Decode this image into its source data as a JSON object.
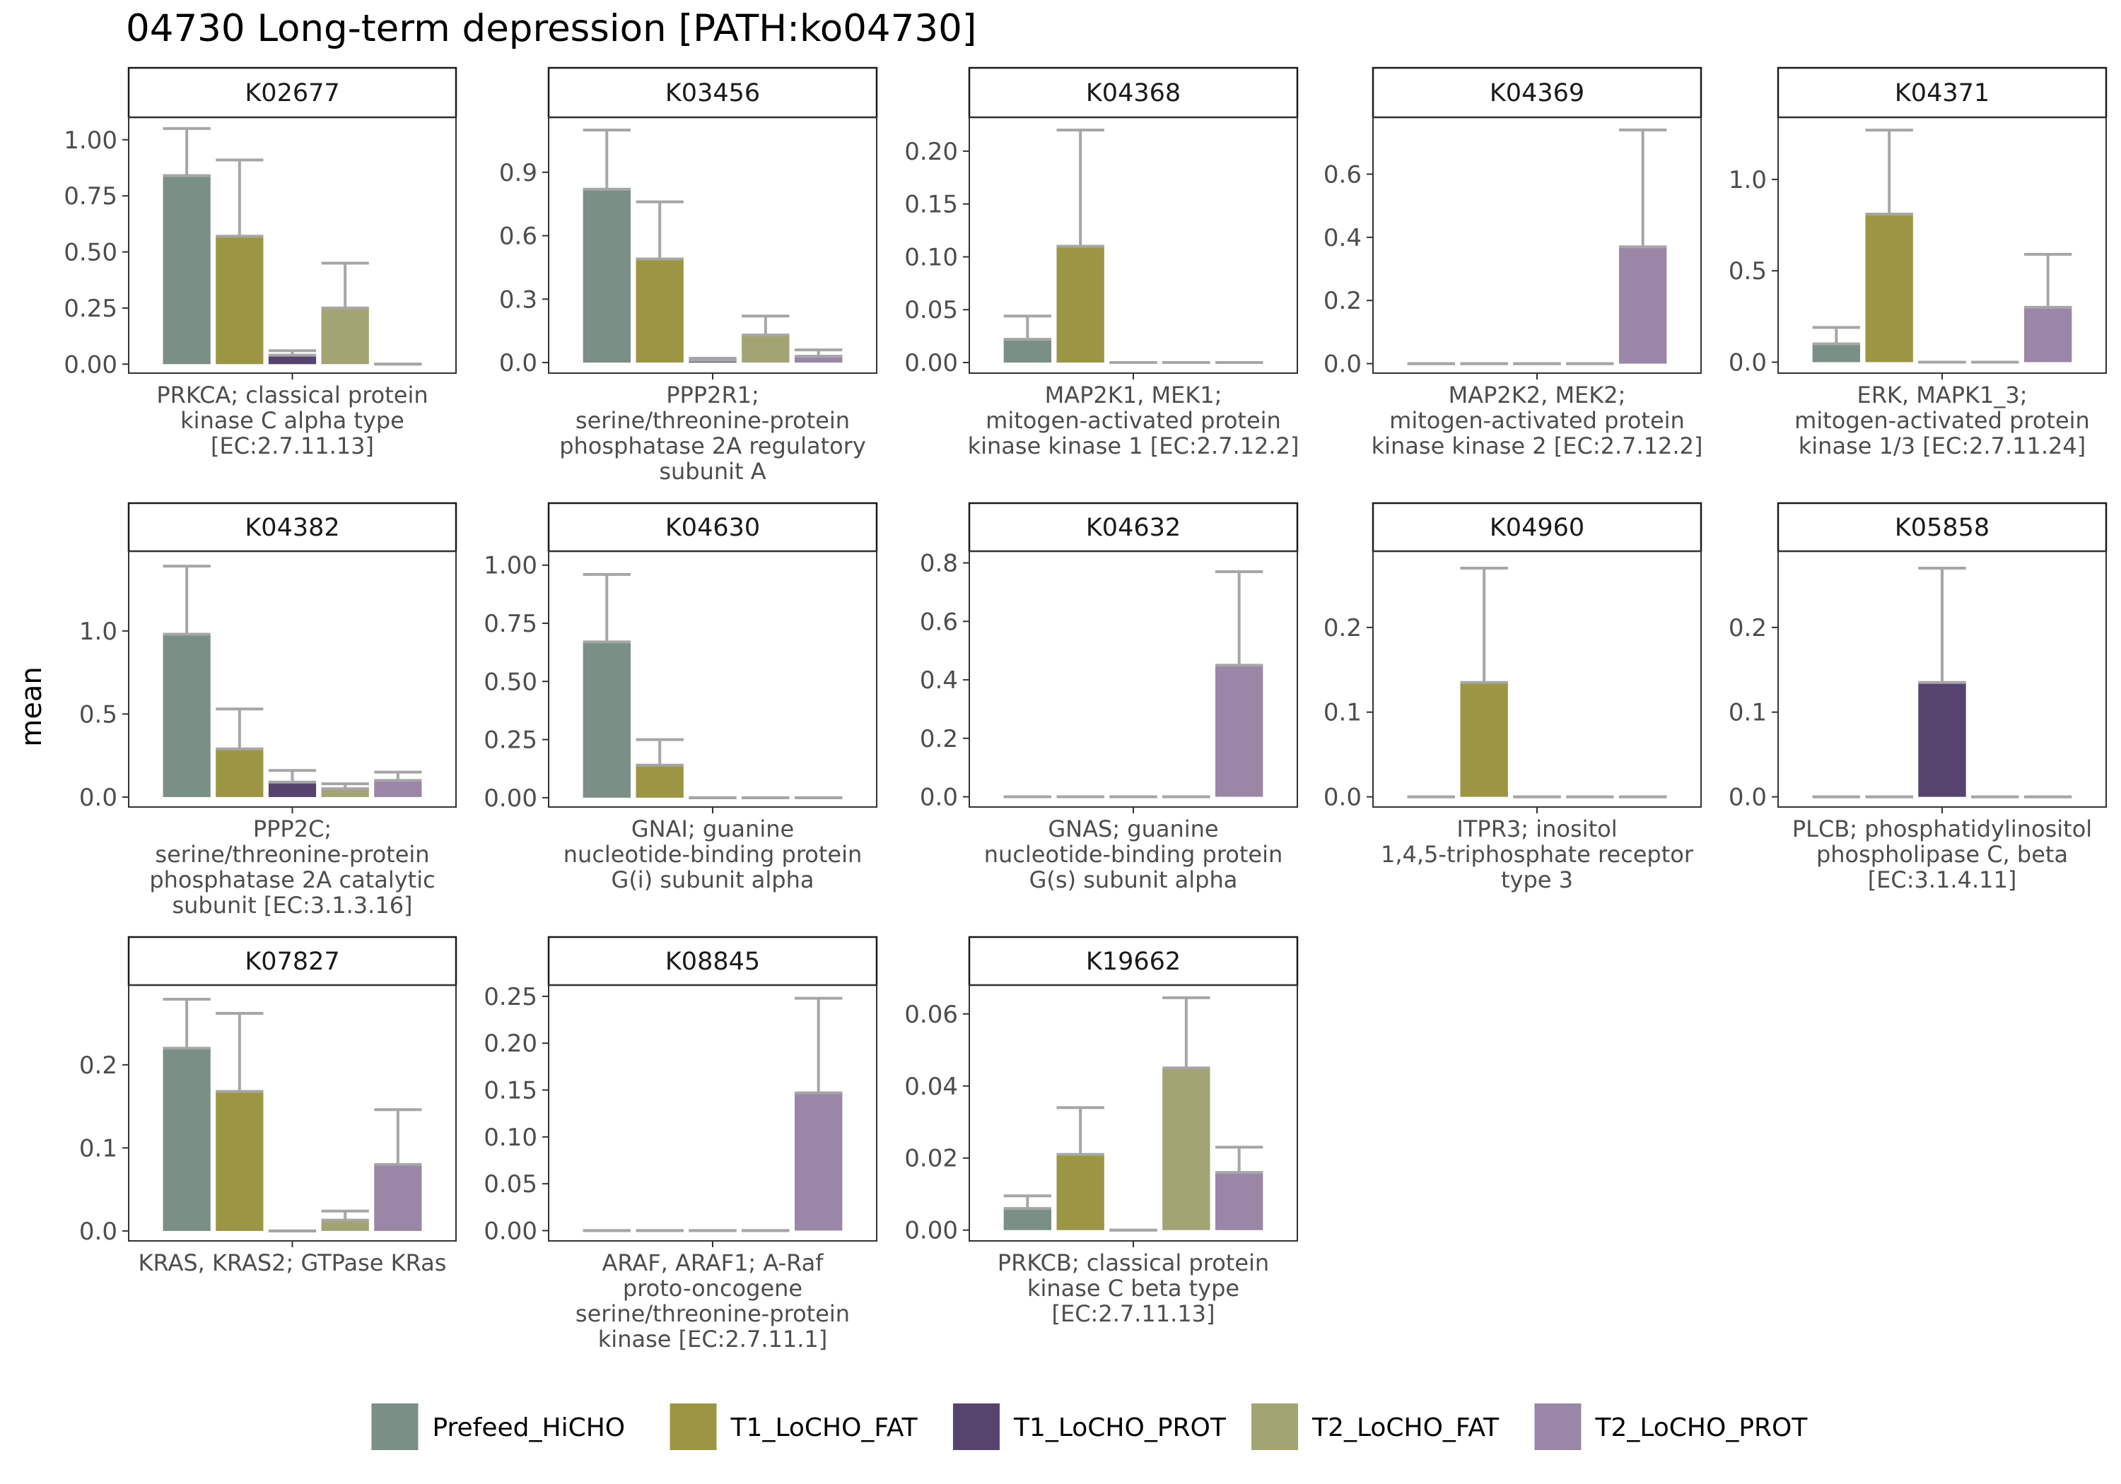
{
  "title": "04730 Long-term depression [PATH:ko04730]",
  "y_axis_title": "mean",
  "groups": [
    "Prefeed_HiCHO",
    "T1_LoCHO_FAT",
    "T1_LoCHO_PROT",
    "T2_LoCHO_FAT",
    "T2_LoCHO_PROT"
  ],
  "colors": {
    "Prefeed_HiCHO": "#7a8f86",
    "T1_LoCHO_FAT": "#9c9644",
    "T1_LoCHO_PROT": "#56446f",
    "T2_LoCHO_FAT": "#a3a473",
    "T2_LoCHO_PROT": "#9a86a6",
    "error_bar": "#a6a6a6"
  },
  "chart_data": {
    "type": "bar",
    "facet_layout": {
      "columns": 5,
      "rows": 3
    },
    "legend_position": "bottom",
    "grid": false,
    "panels": [
      {
        "id": "K02677",
        "xlabel": [
          "PRKCA; classical protein",
          "kinase C alpha type",
          "[EC:2.7.11.13]"
        ],
        "ylim": [
          -0.04,
          1.1
        ],
        "yticks": [
          0,
          0.25,
          0.5,
          0.75,
          1
        ],
        "ytick_labels": [
          "0.00",
          "0.25",
          "0.50",
          "0.75",
          "1.00"
        ],
        "means": [
          0.84,
          0.57,
          0.04,
          0.25,
          0.0
        ],
        "upper": [
          1.05,
          0.91,
          0.06,
          0.45,
          0.0
        ]
      },
      {
        "id": "K03456",
        "xlabel": [
          "PPP2R1;",
          "serine/threonine-protein",
          "phosphatase 2A regulatory",
          "subunit A"
        ],
        "ylim": [
          -0.05,
          1.16
        ],
        "yticks": [
          0,
          0.3,
          0.6,
          0.9
        ],
        "ytick_labels": [
          "0.0",
          "0.3",
          "0.6",
          "0.9"
        ],
        "means": [
          0.82,
          0.49,
          0.01,
          0.13,
          0.03
        ],
        "upper": [
          1.1,
          0.76,
          0.02,
          0.22,
          0.06
        ]
      },
      {
        "id": "K04368",
        "xlabel": [
          "MAP2K1, MEK1;",
          "mitogen-activated protein",
          "kinase kinase 1 [EC:2.7.12.2]"
        ],
        "ylim": [
          -0.01,
          0.232
        ],
        "yticks": [
          0,
          0.05,
          0.1,
          0.15,
          0.2
        ],
        "ytick_labels": [
          "0.00",
          "0.05",
          "0.10",
          "0.15",
          "0.20"
        ],
        "means": [
          0.022,
          0.11,
          0.0,
          0.0,
          0.0
        ],
        "upper": [
          0.044,
          0.22,
          0.0,
          0.0,
          0.0
        ]
      },
      {
        "id": "K04369",
        "xlabel": [
          "MAP2K2, MEK2;",
          "mitogen-activated protein",
          "kinase kinase 2 [EC:2.7.12.2]"
        ],
        "ylim": [
          -0.03,
          0.78
        ],
        "yticks": [
          0,
          0.2,
          0.4,
          0.6
        ],
        "ytick_labels": [
          "0.0",
          "0.2",
          "0.4",
          "0.6"
        ],
        "means": [
          0.0,
          0.0,
          0.0,
          0.0,
          0.37
        ],
        "upper": [
          0.0,
          0.0,
          0.0,
          0.0,
          0.74
        ]
      },
      {
        "id": "K04371",
        "xlabel": [
          "ERK, MAPK1_3;",
          "mitogen-activated protein",
          "kinase 1/3 [EC:2.7.11.24]"
        ],
        "ylim": [
          -0.06,
          1.34
        ],
        "yticks": [
          0,
          0.5,
          1.0
        ],
        "ytick_labels": [
          "0.0",
          "0.5",
          "1.0"
        ],
        "means": [
          0.1,
          0.81,
          0.0,
          0.0,
          0.3
        ],
        "upper": [
          0.19,
          1.27,
          0.0,
          0.0,
          0.59
        ]
      },
      {
        "id": "K04382",
        "xlabel": [
          "PPP2C;",
          "serine/threonine-protein",
          "phosphatase 2A catalytic",
          "subunit [EC:3.1.3.16]"
        ],
        "ylim": [
          -0.06,
          1.48
        ],
        "yticks": [
          0,
          0.5,
          1.0
        ],
        "ytick_labels": [
          "0.0",
          "0.5",
          "1.0"
        ],
        "means": [
          0.98,
          0.29,
          0.09,
          0.05,
          0.1
        ],
        "upper": [
          1.39,
          0.53,
          0.16,
          0.08,
          0.15
        ]
      },
      {
        "id": "K04630",
        "xlabel": [
          "GNAI; guanine",
          "nucleotide-binding protein",
          "G(i) subunit alpha"
        ],
        "ylim": [
          -0.04,
          1.06
        ],
        "yticks": [
          0,
          0.25,
          0.5,
          0.75,
          1
        ],
        "ytick_labels": [
          "0.00",
          "0.25",
          "0.50",
          "0.75",
          "1.00"
        ],
        "means": [
          0.67,
          0.14,
          0.0,
          0.0,
          0.0
        ],
        "upper": [
          0.96,
          0.25,
          0.0,
          0.0,
          0.0
        ]
      },
      {
        "id": "K04632",
        "xlabel": [
          "GNAS; guanine",
          "nucleotide-binding protein",
          "G(s) subunit alpha"
        ],
        "ylim": [
          -0.035,
          0.84
        ],
        "yticks": [
          0,
          0.2,
          0.4,
          0.6,
          0.8
        ],
        "ytick_labels": [
          "0.0",
          "0.2",
          "0.4",
          "0.6",
          "0.8"
        ],
        "means": [
          0.0,
          0.0,
          0.0,
          0.0,
          0.45
        ],
        "upper": [
          0.0,
          0.0,
          0.0,
          0.0,
          0.77
        ]
      },
      {
        "id": "K04960",
        "xlabel": [
          "ITPR3; inositol",
          "1,4,5-triphosphate receptor",
          "type 3"
        ],
        "ylim": [
          -0.012,
          0.29
        ],
        "yticks": [
          0,
          0.1,
          0.2
        ],
        "ytick_labels": [
          "0.0",
          "0.1",
          "0.2"
        ],
        "means": [
          0.0,
          0.135,
          0.0,
          0.0,
          0.0
        ],
        "upper": [
          0.0,
          0.27,
          0.0,
          0.0,
          0.0
        ]
      },
      {
        "id": "K05858",
        "xlabel": [
          "PLCB; phosphatidylinositol",
          "phospholipase C, beta",
          "[EC:3.1.4.11]"
        ],
        "ylim": [
          -0.012,
          0.29
        ],
        "yticks": [
          0,
          0.1,
          0.2
        ],
        "ytick_labels": [
          "0.0",
          "0.1",
          "0.2"
        ],
        "means": [
          0.0,
          0.0,
          0.135,
          0.0,
          0.0
        ],
        "upper": [
          0.0,
          0.0,
          0.27,
          0.0,
          0.0
        ]
      },
      {
        "id": "K07827",
        "xlabel": [
          "KRAS, KRAS2; GTPase KRas"
        ],
        "ylim": [
          -0.012,
          0.296
        ],
        "yticks": [
          0,
          0.1,
          0.2
        ],
        "ytick_labels": [
          "0.0",
          "0.1",
          "0.2"
        ],
        "means": [
          0.22,
          0.168,
          0.0,
          0.013,
          0.08
        ],
        "upper": [
          0.279,
          0.262,
          0.0,
          0.024,
          0.146
        ]
      },
      {
        "id": "K08845",
        "xlabel": [
          "ARAF, ARAF1; A-Raf",
          "proto-oncogene",
          "serine/threonine-protein",
          "kinase [EC:2.7.11.1]"
        ],
        "ylim": [
          -0.011,
          0.262
        ],
        "yticks": [
          0,
          0.05,
          0.1,
          0.15,
          0.2,
          0.25
        ],
        "ytick_labels": [
          "0.00",
          "0.05",
          "0.10",
          "0.15",
          "0.20",
          "0.25"
        ],
        "means": [
          0.0,
          0.0,
          0.0,
          0.0,
          0.147
        ],
        "upper": [
          0.0,
          0.0,
          0.0,
          0.0,
          0.248
        ]
      },
      {
        "id": "K19662",
        "xlabel": [
          "PRKCB; classical protein",
          "kinase C beta type",
          "[EC:2.7.11.13]"
        ],
        "ylim": [
          -0.003,
          0.068
        ],
        "yticks": [
          0,
          0.02,
          0.04,
          0.06
        ],
        "ytick_labels": [
          "0.00",
          "0.02",
          "0.04",
          "0.06"
        ],
        "means": [
          0.006,
          0.021,
          0.0,
          0.045,
          0.016
        ],
        "upper": [
          0.0095,
          0.034,
          0.0,
          0.0645,
          0.023
        ]
      }
    ]
  }
}
